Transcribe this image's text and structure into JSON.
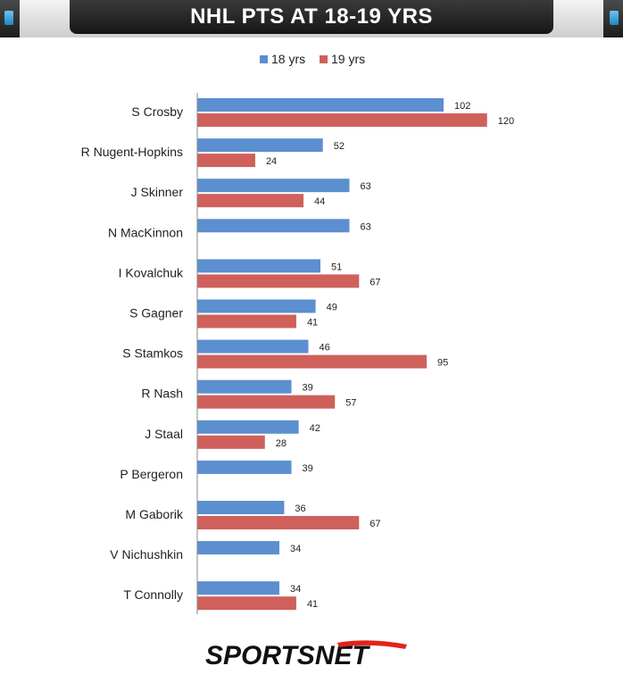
{
  "title": "NHL PTS AT 18-19 YRS",
  "logo_text": "SPORTSNET",
  "colors": {
    "series_18": "#5b8fd0",
    "series_19": "#d0605c",
    "logo_red": "#e2231a"
  },
  "chart_data": {
    "type": "bar",
    "orientation": "horizontal",
    "categories": [
      "S Crosby",
      "R Nugent-Hopkins",
      "J Skinner",
      "N MacKinnon",
      "I Kovalchuk",
      "S Gagner",
      "S Stamkos",
      "R Nash",
      "J Staal",
      "P Bergeron",
      "M Gaborik",
      "V Nichushkin",
      "T Connolly"
    ],
    "series": [
      {
        "name": "18 yrs",
        "values": [
          102,
          52,
          63,
          63,
          51,
          49,
          46,
          39,
          42,
          39,
          36,
          34,
          34
        ]
      },
      {
        "name": "19 yrs",
        "values": [
          120,
          24,
          44,
          null,
          67,
          41,
          95,
          57,
          28,
          null,
          67,
          null,
          41
        ]
      }
    ],
    "xlim": [
      0,
      130
    ],
    "legend_position": "top-center",
    "grid": false,
    "data_labels": true
  }
}
